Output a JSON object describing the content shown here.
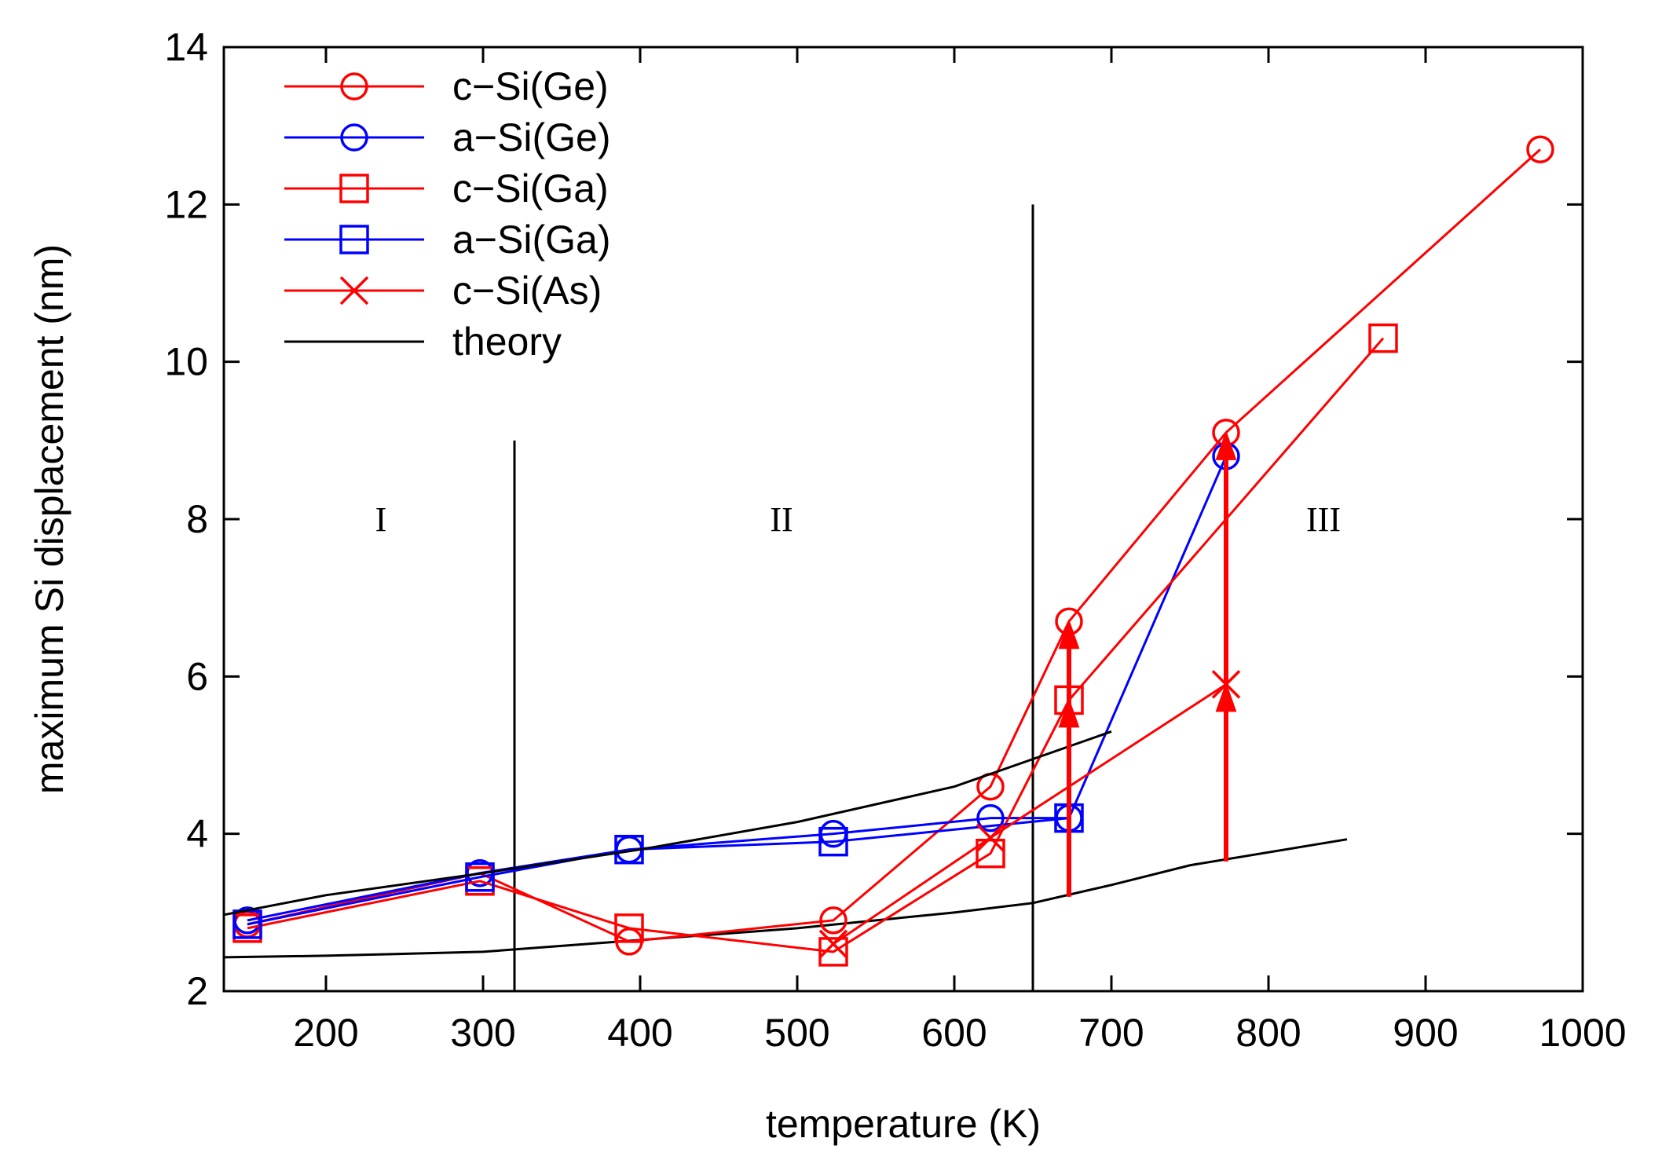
{
  "chart_data": {
    "type": "line",
    "xlabel": "temperature (K)",
    "ylabel": "maximum Si displacement (nm)",
    "xlim": [
      135,
      1000
    ],
    "ylim": [
      2,
      14
    ],
    "xticks": [
      200,
      300,
      400,
      500,
      600,
      700,
      800,
      900,
      1000
    ],
    "yticks": [
      2,
      4,
      6,
      8,
      10,
      12,
      14
    ],
    "legend_position": "top-left",
    "series": [
      {
        "name": "c−Si(Ge)",
        "color": "#ff0000",
        "marker": "circle",
        "x": [
          150,
          298,
          393,
          523,
          623,
          673,
          773,
          973
        ],
        "y": [
          2.85,
          3.5,
          2.63,
          2.9,
          4.6,
          6.7,
          9.1,
          12.7
        ]
      },
      {
        "name": "a−Si(Ge)",
        "color": "#0000ff",
        "marker": "circle",
        "x": [
          150,
          298,
          393,
          523,
          623,
          673,
          773
        ],
        "y": [
          2.9,
          3.5,
          3.8,
          4.0,
          4.2,
          4.2,
          8.8
        ]
      },
      {
        "name": "c−Si(Ga)",
        "color": "#ff0000",
        "marker": "square",
        "x": [
          150,
          298,
          393,
          523,
          623,
          673,
          873
        ],
        "y": [
          2.8,
          3.4,
          2.8,
          2.5,
          3.75,
          5.7,
          10.3
        ]
      },
      {
        "name": "a−Si(Ga)",
        "color": "#0000ff",
        "marker": "square",
        "x": [
          150,
          298,
          393,
          523,
          673
        ],
        "y": [
          2.85,
          3.45,
          3.8,
          3.9,
          4.2
        ]
      },
      {
        "name": "c−Si(As)",
        "color": "#ff0000",
        "marker": "x",
        "x": [
          523,
          623,
          773
        ],
        "y": [
          2.6,
          3.95,
          5.9
        ]
      },
      {
        "name": "theory",
        "color": "#000000",
        "marker": "none",
        "x": [
          135,
          200,
          300,
          400,
          500,
          600,
          700
        ],
        "y": [
          2.97,
          3.22,
          3.5,
          3.8,
          4.15,
          4.6,
          5.3
        ]
      }
    ],
    "theory_lower": {
      "color": "#000000",
      "x": [
        135,
        200,
        300,
        400,
        500,
        600,
        650,
        700,
        750,
        850
      ],
      "y": [
        2.43,
        2.45,
        2.5,
        2.65,
        2.8,
        3.0,
        3.12,
        3.35,
        3.6,
        3.93
      ]
    },
    "regions": [
      {
        "label": "I",
        "x": 235,
        "y": 8
      },
      {
        "label": "II",
        "x": 490,
        "y": 8
      },
      {
        "label": "III",
        "x": 835,
        "y": 8
      }
    ],
    "region_boundaries": [
      {
        "x": 320,
        "y_top": 9
      },
      {
        "x": 650,
        "y_top": 12
      }
    ],
    "arrows": [
      {
        "x": 673,
        "y_from": 3.2,
        "y_to": 6.7
      },
      {
        "x": 673,
        "y_from": 3.2,
        "y_to": 5.7
      },
      {
        "x": 773,
        "y_from": 3.65,
        "y_to": 9.1
      },
      {
        "x": 773,
        "y_from": 3.65,
        "y_to": 5.9
      }
    ]
  }
}
